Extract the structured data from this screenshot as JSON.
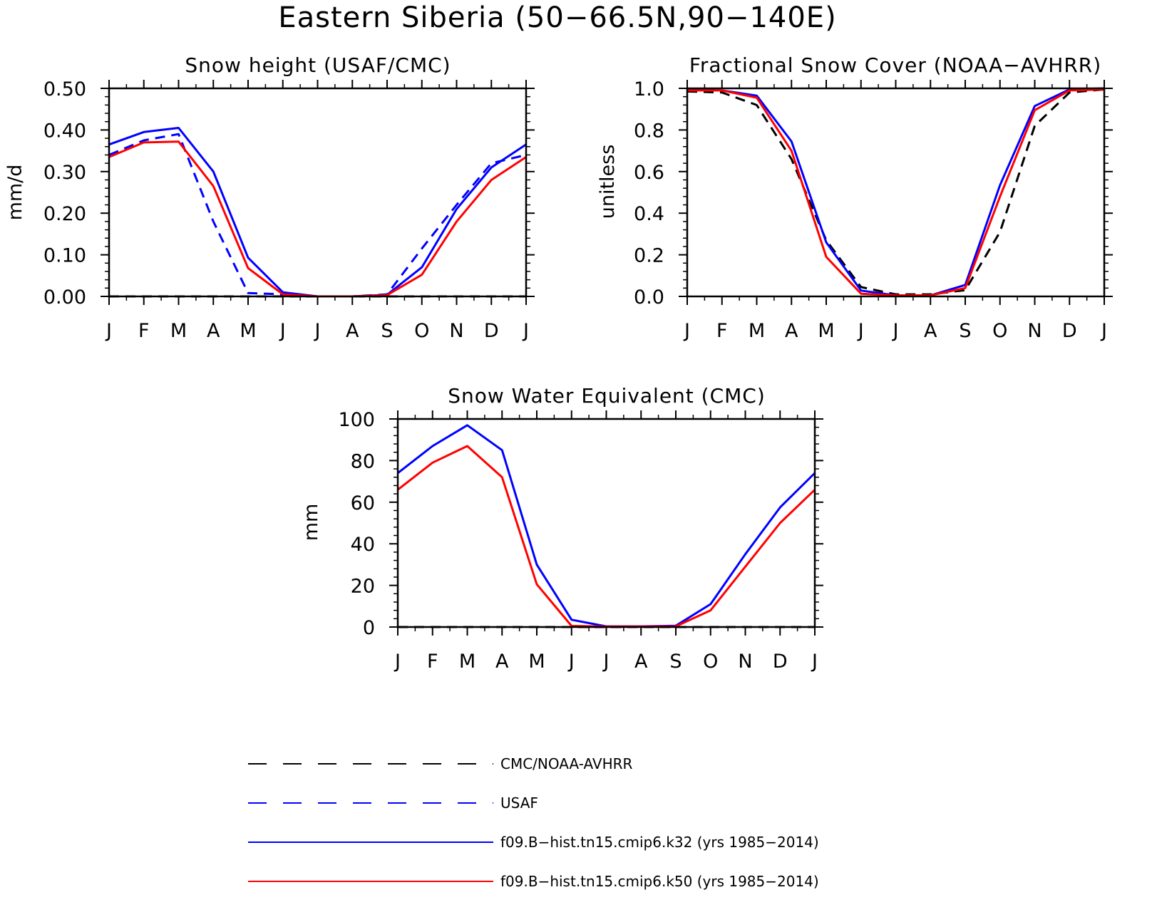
{
  "figure_title": "Eastern Siberia (50−66.5N,90−140E)",
  "month_labels": [
    "J",
    "F",
    "M",
    "A",
    "M",
    "J",
    "J",
    "A",
    "S",
    "O",
    "N",
    "D",
    "J"
  ],
  "colors": {
    "obs": "#000000",
    "usaf": "#0000ff",
    "k32": "#0000ff",
    "k50": "#ff0000"
  },
  "legend": [
    {
      "label": "CMC/NOAA-AVHRR",
      "color": "#000000",
      "dash": "dashed"
    },
    {
      "label": "USAF",
      "color": "#0000ff",
      "dash": "dashed"
    },
    {
      "label": "f09.B−hist.tn15.cmip6.k32 (yrs 1985−2014)",
      "color": "#0000ff",
      "dash": "solid"
    },
    {
      "label": "f09.B−hist.tn15.cmip6.k50 (yrs 1985−2014)",
      "color": "#ff0000",
      "dash": "solid"
    }
  ],
  "chart_data": [
    {
      "type": "line",
      "title": "Snow height (USAF/CMC)",
      "ylabel": "mm/d",
      "xlabel": "",
      "categories": [
        "J",
        "F",
        "M",
        "A",
        "M",
        "J",
        "J",
        "A",
        "S",
        "O",
        "N",
        "D",
        "J"
      ],
      "ylim": [
        0,
        0.5
      ],
      "yticks": [
        "0.00",
        "0.10",
        "0.20",
        "0.30",
        "0.40",
        "0.50"
      ],
      "grid": false,
      "series": [
        {
          "name": "CMC/NOAA-AVHRR",
          "values": [
            0,
            0,
            0,
            0,
            0,
            0,
            0,
            0,
            0,
            0,
            0,
            0,
            0
          ]
        },
        {
          "name": "USAF",
          "values": [
            0.34,
            0.375,
            0.39,
            0.18,
            0.008,
            0.005,
            0.0,
            0.0,
            0.005,
            0.115,
            0.22,
            0.32,
            0.34
          ]
        },
        {
          "name": "f09.B−hist.tn15.cmip6.k32 (yrs 1985−2014)",
          "values": [
            0.365,
            0.395,
            0.405,
            0.3,
            0.093,
            0.01,
            0.0,
            0.0,
            0.004,
            0.07,
            0.21,
            0.31,
            0.365
          ]
        },
        {
          "name": "f09.B−hist.tn15.cmip6.k50 (yrs 1985−2014)",
          "values": [
            0.335,
            0.37,
            0.372,
            0.265,
            0.068,
            0.005,
            0.0,
            0.0,
            0.003,
            0.052,
            0.18,
            0.28,
            0.335
          ]
        }
      ]
    },
    {
      "type": "line",
      "title": "Fractional Snow Cover (NOAA−AVHRR)",
      "ylabel": "unitless",
      "xlabel": "",
      "categories": [
        "J",
        "F",
        "M",
        "A",
        "M",
        "J",
        "J",
        "A",
        "S",
        "O",
        "N",
        "D",
        "J"
      ],
      "ylim": [
        0,
        1.0
      ],
      "yticks": [
        "0.0",
        "0.2",
        "0.4",
        "0.6",
        "0.8",
        "1.0"
      ],
      "grid": false,
      "series": [
        {
          "name": "CMC/NOAA-AVHRR",
          "values": [
            0.985,
            0.98,
            0.92,
            0.66,
            0.27,
            0.045,
            0.01,
            0.01,
            0.03,
            0.31,
            0.82,
            0.98,
            0.995
          ]
        },
        {
          "name": "f09.B−hist.tn15.cmip6.k32 (yrs 1985−2014)",
          "values": [
            0.995,
            0.99,
            0.965,
            0.745,
            0.26,
            0.028,
            0.005,
            0.005,
            0.055,
            0.535,
            0.915,
            0.995,
            1.0
          ]
        },
        {
          "name": "f09.B−hist.tn15.cmip6.k50 (yrs 1985−2014)",
          "values": [
            0.99,
            0.99,
            0.955,
            0.7,
            0.19,
            0.013,
            0.005,
            0.005,
            0.04,
            0.48,
            0.895,
            0.99,
            0.995
          ]
        }
      ]
    },
    {
      "type": "line",
      "title": "Snow Water Equivalent (CMC)",
      "ylabel": "mm",
      "xlabel": "",
      "categories": [
        "J",
        "F",
        "M",
        "A",
        "M",
        "J",
        "J",
        "A",
        "S",
        "O",
        "N",
        "D",
        "J"
      ],
      "ylim": [
        0,
        100
      ],
      "yticks": [
        "0",
        "20",
        "40",
        "60",
        "80",
        "100"
      ],
      "grid": false,
      "series": [
        {
          "name": "CMC/NOAA-AVHRR",
          "values": [
            0,
            0,
            0,
            0,
            0,
            0,
            0,
            0,
            0,
            0,
            0,
            0,
            0
          ]
        },
        {
          "name": "f09.B−hist.tn15.cmip6.k32 (yrs 1985−2014)",
          "values": [
            74,
            87,
            97,
            85,
            30,
            3.5,
            0.3,
            0.3,
            0.6,
            11,
            35,
            57.5,
            74
          ]
        },
        {
          "name": "f09.B−hist.tn15.cmip6.k50 (yrs 1985−2014)",
          "values": [
            66,
            79,
            87,
            72,
            20.5,
            0.5,
            0.2,
            0.2,
            0.3,
            8,
            29,
            50,
            66
          ]
        }
      ]
    }
  ]
}
